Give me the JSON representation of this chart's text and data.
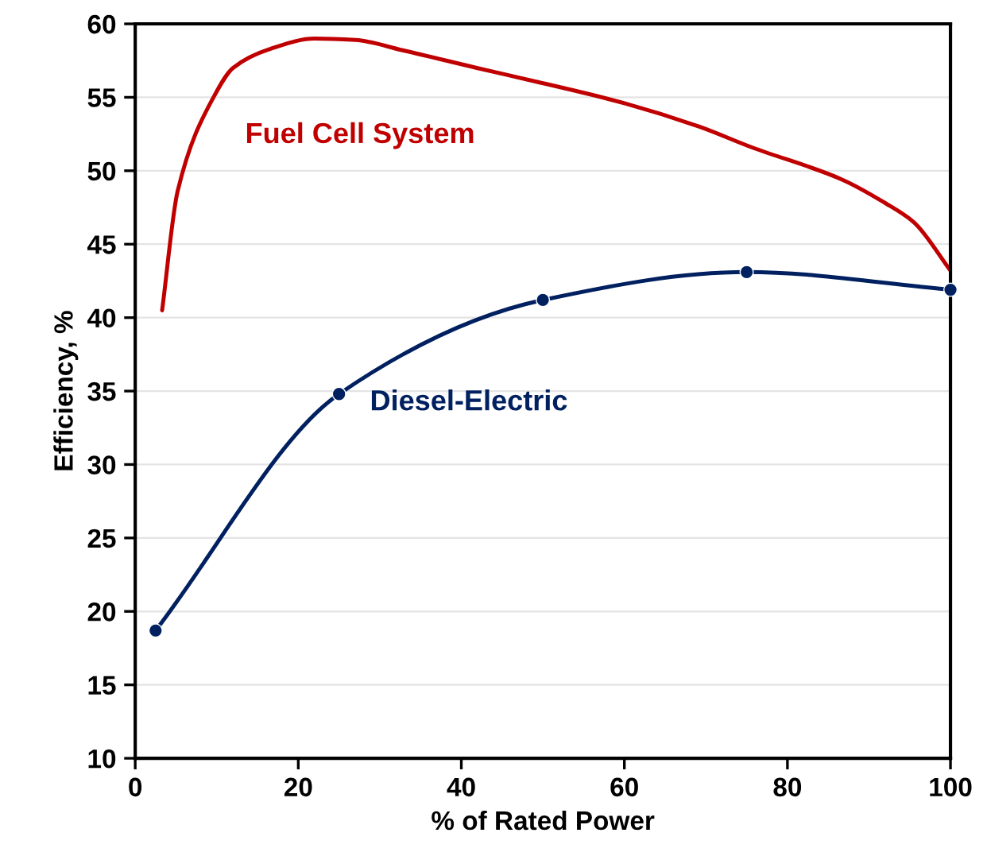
{
  "chart_data": {
    "type": "line",
    "xlabel": "% of Rated Power",
    "ylabel": "Efficiency, %",
    "xlim": [
      0,
      100
    ],
    "xticks": [
      0,
      20,
      40,
      60,
      80,
      100
    ],
    "ylim": [
      10,
      60
    ],
    "yticks": [
      10,
      15,
      20,
      25,
      30,
      35,
      40,
      45,
      50,
      55,
      60
    ],
    "grid": "y",
    "legend": false,
    "series": [
      {
        "name": "Fuel Cell System",
        "color": "#c00000",
        "marker": "none",
        "x": [
          3.3,
          5.2,
          9.7,
          12.0,
          16.6,
          22.0,
          27.0,
          32.8,
          41.9,
          49.7,
          60.0,
          69.2,
          75.6,
          86.7,
          92.0,
          95.5,
          100
        ],
        "values": [
          40.5,
          48.6,
          55.1,
          57.0,
          58.3,
          59.0,
          58.9,
          58.2,
          57.0,
          56.0,
          54.6,
          53.0,
          51.6,
          49.4,
          47.8,
          46.5,
          43.2
        ]
      },
      {
        "name": "Diesel-Electric",
        "color": "#002060",
        "marker": "circle",
        "x": [
          2.5,
          25,
          50,
          75,
          100
        ],
        "values": [
          18.7,
          34.8,
          41.2,
          43.1,
          41.9
        ]
      }
    ]
  }
}
